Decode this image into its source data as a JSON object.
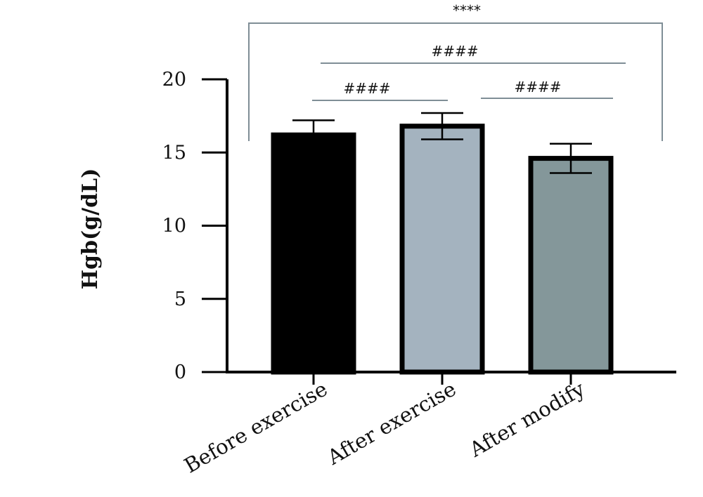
{
  "chart_data": {
    "type": "bar",
    "ylabel": "Hgb(g/dL)",
    "xlabel": "",
    "title": "",
    "categories": [
      "Before exercise",
      "After exercise",
      "After modify"
    ],
    "values": [
      16.2,
      16.8,
      14.6
    ],
    "errors": [
      1.0,
      0.9,
      1.0
    ],
    "ylim": [
      0,
      20
    ],
    "yticks": [
      0,
      5,
      10,
      15,
      20
    ],
    "bar_colors": [
      "#000000",
      "#a4b3bf",
      "#84979a"
    ],
    "grid": false,
    "legend": "none",
    "significance": [
      {
        "from": 0,
        "to": 2,
        "label": "****",
        "style": "bracket"
      },
      {
        "from": 0,
        "to": 1,
        "label": "####",
        "style": "line"
      },
      {
        "from": 1,
        "to": 2,
        "label": "####",
        "style": "line"
      },
      {
        "from": 0,
        "to": 2,
        "label": "####",
        "style": "line"
      }
    ]
  }
}
